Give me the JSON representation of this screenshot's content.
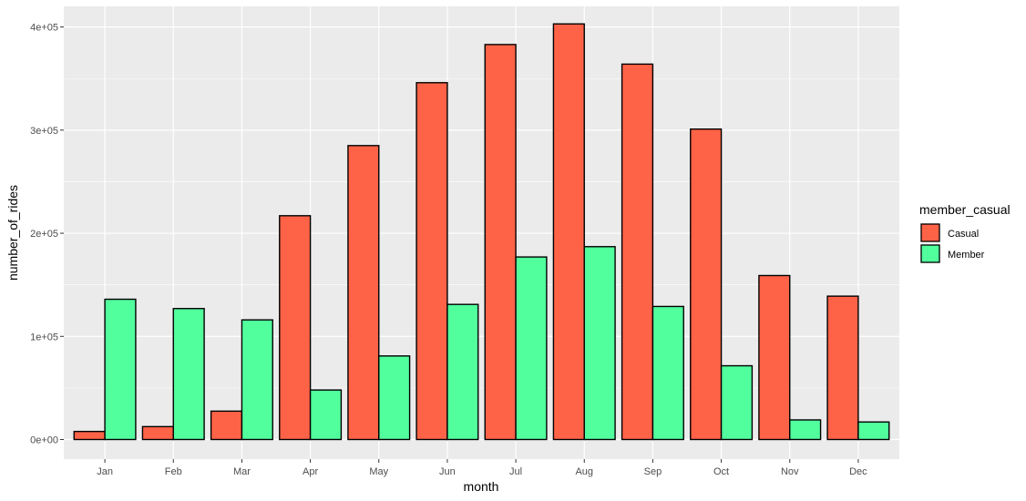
{
  "chart_data": {
    "type": "bar",
    "title": "",
    "xlabel": "month",
    "ylabel": "number_of_rides",
    "categories": [
      "Jan",
      "Feb",
      "Mar",
      "Apr",
      "May",
      "Jun",
      "Jul",
      "Aug",
      "Sep",
      "Oct",
      "Nov",
      "Dec"
    ],
    "series": [
      {
        "name": "Casual",
        "color": "#FF6347",
        "values": [
          7800,
          12500,
          27500,
          217000,
          285000,
          346000,
          383000,
          403000,
          364000,
          301000,
          159000,
          139000
        ]
      },
      {
        "name": "Member",
        "color": "#52FF9D",
        "values": [
          136000,
          127000,
          116000,
          48000,
          81000,
          131000,
          177000,
          187000,
          129000,
          71500,
          19000,
          17000
        ]
      }
    ],
    "ylim": [
      -19000,
      420000
    ],
    "yticks": [
      0,
      100000,
      200000,
      300000,
      400000
    ],
    "ytick_labels": [
      "0e+00",
      "1e+05",
      "2e+05",
      "3e+05",
      "4e+05"
    ],
    "legend_title": "member_casual",
    "legend_position": "right",
    "grid": true,
    "panel_background": "#EBEBEB",
    "bar_outline": "#000000"
  }
}
